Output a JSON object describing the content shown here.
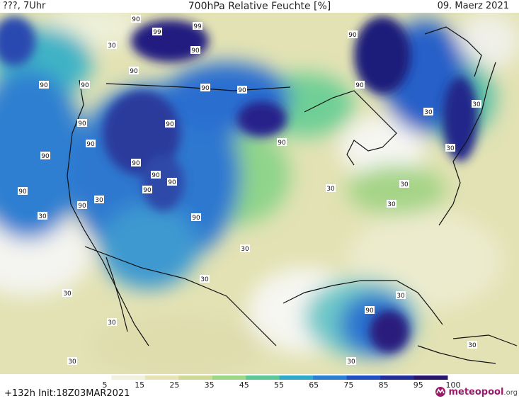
{
  "header": {
    "left": "???, 7Uhr",
    "title": "700hPa Relative Feuchte [%]",
    "date": "09. Maerz 2021"
  },
  "footer": {
    "run": "+132h  Init:18Z03MAR2021",
    "logo_main": "meteopool",
    "logo_suffix": ".org",
    "logo_icon": "meteopool-logo-icon"
  },
  "legend": {
    "labels": [
      "5",
      "15",
      "25",
      "35",
      "45",
      "55",
      "65",
      "75",
      "85",
      "95",
      "100"
    ],
    "colors": [
      "#ffffff",
      "#f3f0de",
      "#e6e3b5",
      "#cfd894",
      "#9fd587",
      "#5cc898",
      "#2fa9c6",
      "#2a7fd4",
      "#1f4fc0",
      "#202e9a",
      "#2a156d"
    ]
  },
  "contour_labels": [
    "90",
    "99",
    "99",
    "90",
    "30",
    "90",
    "90",
    "90",
    "90",
    "90",
    "90",
    "90",
    "90",
    "90",
    "90",
    "90",
    "90",
    "90",
    "90",
    "90",
    "90",
    "90",
    "90",
    "90",
    "30",
    "30",
    "30",
    "30",
    "30",
    "30",
    "30",
    "30",
    "30",
    "30",
    "30",
    "30",
    "30",
    "30",
    "30",
    "30",
    "90"
  ]
}
